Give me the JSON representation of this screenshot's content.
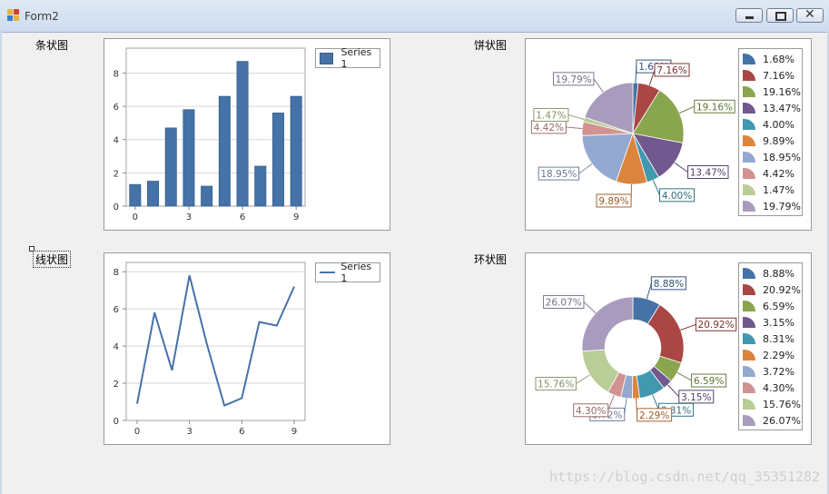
{
  "window": {
    "title": "Form2"
  },
  "controls": {
    "minimize": "minimize",
    "restore": "restore",
    "close": "close"
  },
  "labels": {
    "bar": "条状图",
    "pie": "饼状图",
    "line": "线状图",
    "ring": "环状图"
  },
  "watermark": "https://blog.csdn.net/qq_35351282",
  "colors": [
    "#4572a7",
    "#aa4643",
    "#89a54e",
    "#71588f",
    "#4198af",
    "#db843d",
    "#93a9cf",
    "#d19392",
    "#b9cd96",
    "#a99bbd"
  ],
  "chart_data": [
    {
      "type": "bar",
      "series": [
        {
          "name": "Series 1",
          "values": [
            1.3,
            1.5,
            4.7,
            5.8,
            1.2,
            6.6,
            8.7,
            2.4,
            5.6,
            6.6
          ]
        }
      ],
      "x": [
        0,
        1,
        2,
        3,
        4,
        5,
        6,
        7,
        8,
        9
      ],
      "xticks": [
        "0",
        "3",
        "6",
        "9"
      ],
      "yticks": [
        "0",
        "2",
        "4",
        "6",
        "8"
      ],
      "ylim": [
        0,
        9.5
      ],
      "grid": true,
      "legend": "top-right"
    },
    {
      "type": "pie",
      "slices": [
        {
          "label": "1.68%",
          "value": 1.68
        },
        {
          "label": "7.16%",
          "value": 7.16
        },
        {
          "label": "19.16%",
          "value": 19.16
        },
        {
          "label": "13.47%",
          "value": 13.47
        },
        {
          "label": "4.00%",
          "value": 4.0
        },
        {
          "label": "9.89%",
          "value": 9.89
        },
        {
          "label": "18.95%",
          "value": 18.95
        },
        {
          "label": "4.42%",
          "value": 4.42
        },
        {
          "label": "1.47%",
          "value": 1.47
        },
        {
          "label": "19.79%",
          "value": 19.79
        }
      ],
      "legend": "right"
    },
    {
      "type": "line",
      "series": [
        {
          "name": "Series 1",
          "values": [
            0.9,
            5.8,
            2.7,
            7.8,
            4.1,
            0.8,
            1.2,
            5.3,
            5.1,
            7.2
          ]
        }
      ],
      "x": [
        0,
        1,
        2,
        3,
        4,
        5,
        6,
        7,
        8,
        9
      ],
      "xticks": [
        "0",
        "3",
        "6",
        "9"
      ],
      "yticks": [
        "0",
        "2",
        "4",
        "6",
        "8"
      ],
      "ylim": [
        0,
        8.5
      ],
      "grid": true,
      "legend": "top-right"
    },
    {
      "type": "pie",
      "subtype": "doughnut",
      "slices": [
        {
          "label": "8.88%",
          "value": 8.88
        },
        {
          "label": "20.92%",
          "value": 20.92
        },
        {
          "label": "6.59%",
          "value": 6.59
        },
        {
          "label": "3.15%",
          "value": 3.15
        },
        {
          "label": "8.31%",
          "value": 8.31
        },
        {
          "label": "2.29%",
          "value": 2.29
        },
        {
          "label": "3.72%",
          "value": 3.72
        },
        {
          "label": "4.30%",
          "value": 4.3
        },
        {
          "label": "15.76%",
          "value": 15.76
        },
        {
          "label": "26.07%",
          "value": 26.07
        }
      ],
      "legend": "right"
    }
  ]
}
